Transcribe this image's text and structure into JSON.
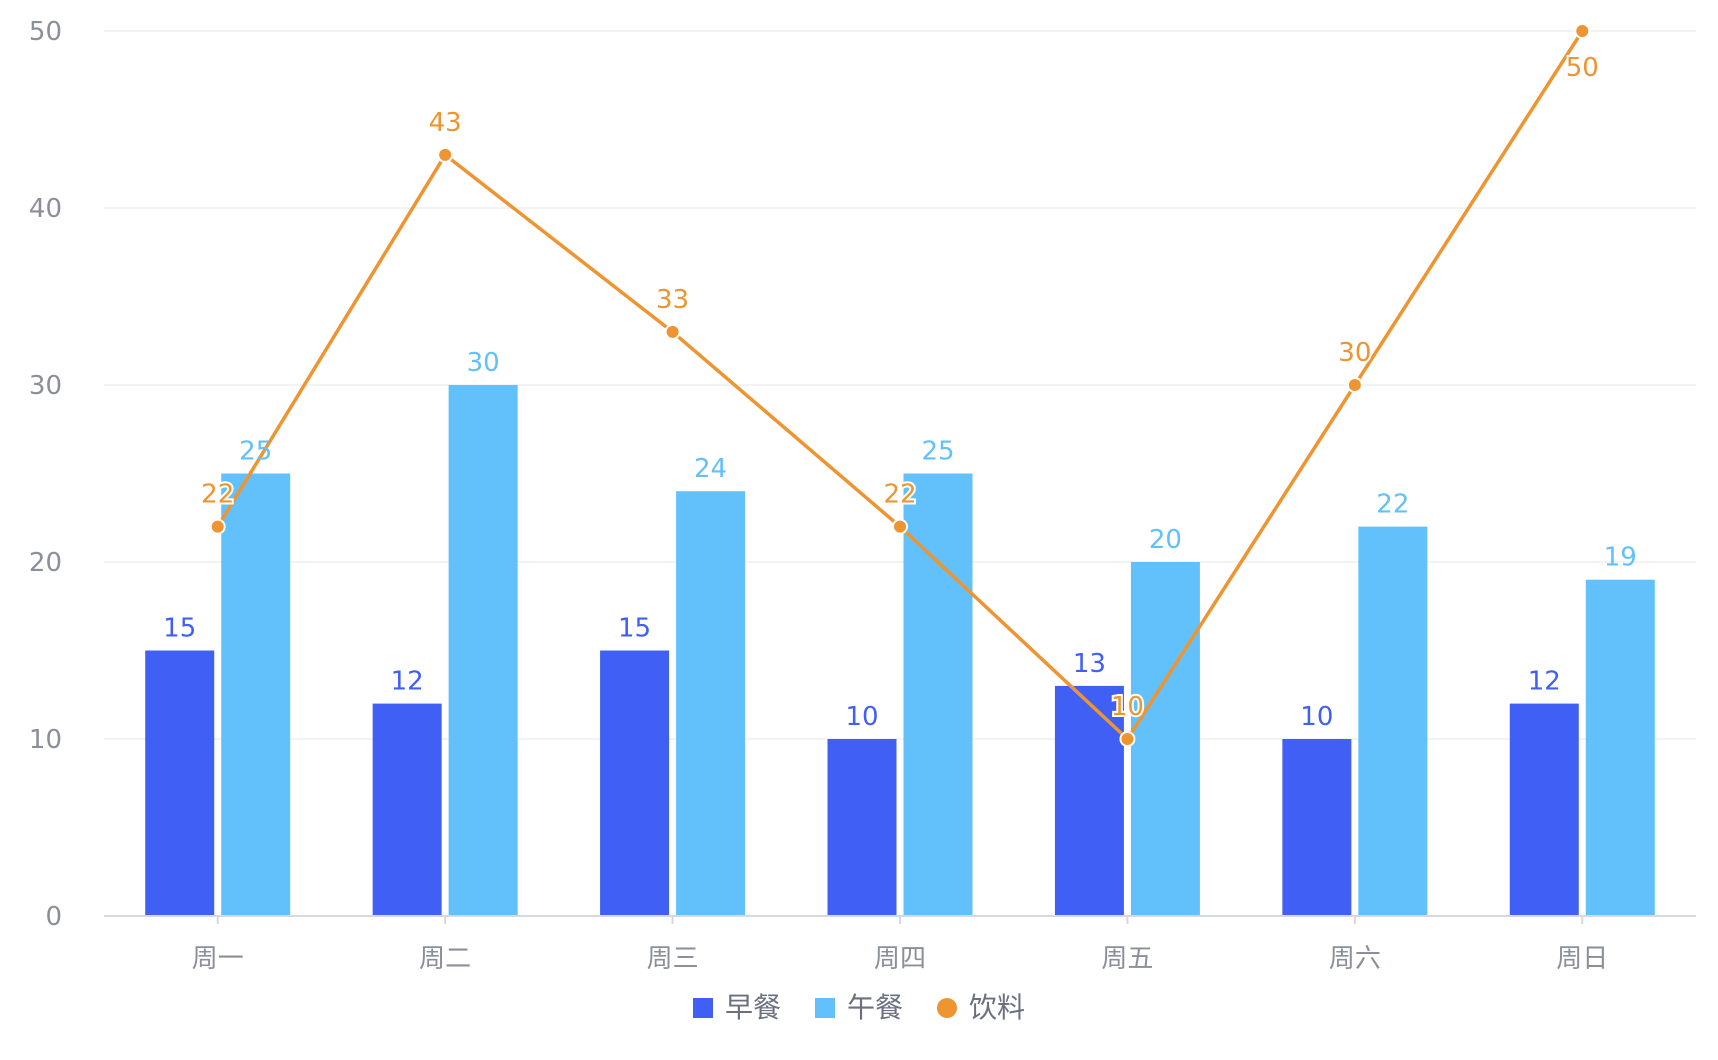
{
  "chart_data": {
    "type": "bar",
    "categories": [
      "周一",
      "周二",
      "周三",
      "周四",
      "周五",
      "周六",
      "周日"
    ],
    "series": [
      {
        "name": "早餐",
        "type": "bar",
        "color": "#4060f5",
        "values": [
          15,
          12,
          15,
          10,
          13,
          10,
          12
        ]
      },
      {
        "name": "午餐",
        "type": "bar",
        "color": "#62c1fa",
        "values": [
          25,
          30,
          24,
          25,
          20,
          22,
          19
        ]
      },
      {
        "name": "饮料",
        "type": "line",
        "color": "#ee9430",
        "values": [
          22,
          43,
          33,
          22,
          10,
          30,
          50
        ]
      }
    ],
    "y_ticks": [
      "0",
      "10",
      "20",
      "30",
      "40",
      "50"
    ],
    "ylim": [
      0,
      50
    ],
    "grid": true,
    "legend_position": "bottom-center",
    "data_labels": true,
    "colors": {
      "grid": "#eeeff2",
      "axis": "#d5d8de",
      "axis_text": "#8a8f99",
      "legend_text": "#6b7080"
    }
  }
}
